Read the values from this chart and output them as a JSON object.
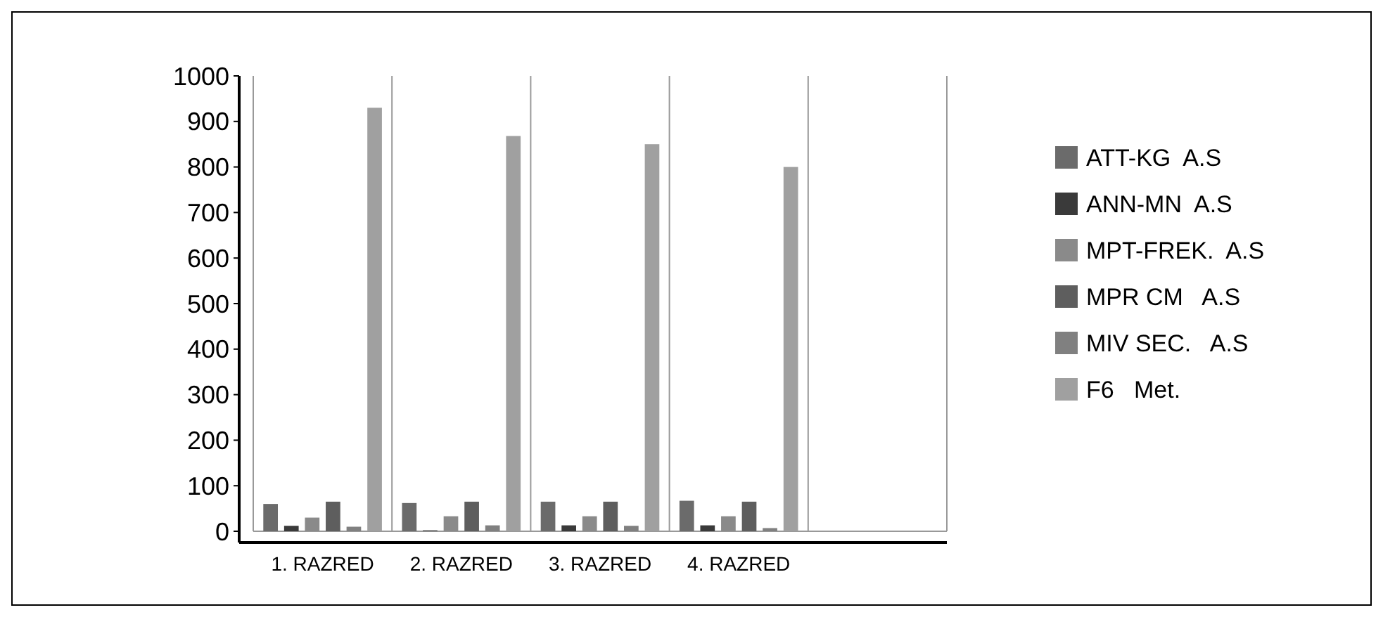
{
  "chart_data": {
    "type": "bar",
    "categories": [
      "1. RAZRED",
      "2. RAZRED",
      "3. RAZRED",
      "4. RAZRED",
      null
    ],
    "series": [
      {
        "name": "ATT-KG  A.S",
        "color": "#6b6b6b",
        "values": [
          60,
          62,
          65,
          67,
          null
        ]
      },
      {
        "name": "ANN-MN  A.S",
        "color": "#3a3a3a",
        "values": [
          12,
          2,
          13,
          13,
          null
        ]
      },
      {
        "name": "MPT-FREK.  A.S",
        "color": "#8a8a8a",
        "values": [
          30,
          33,
          33,
          33,
          null
        ]
      },
      {
        "name": "MPR CM   A.S",
        "color": "#5e5e5e",
        "values": [
          65,
          65,
          65,
          65,
          null
        ]
      },
      {
        "name": "MIV SEC.   A.S",
        "color": "#808080",
        "values": [
          10,
          13,
          12,
          7,
          null
        ]
      },
      {
        "name": "F6   Met.",
        "color": "#a0a0a0",
        "values": [
          930,
          868,
          850,
          800,
          null
        ]
      }
    ],
    "ylim": [
      0,
      1000
    ],
    "yticks": [
      0,
      100,
      200,
      300,
      400,
      500,
      600,
      700,
      800,
      900,
      1000
    ],
    "grid": "x",
    "legend": "right"
  }
}
